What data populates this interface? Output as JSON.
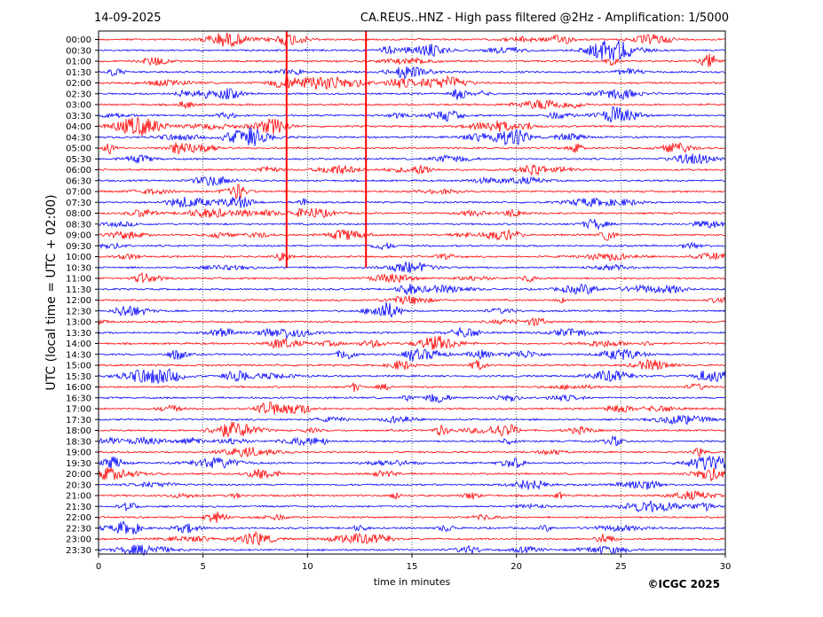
{
  "chart_data": {
    "type": "line",
    "date": "14-09-2025",
    "title": "CA.REUS..HNZ - High pass filtered @2Hz - Amplification: 1/5000",
    "xlabel": "time in minutes",
    "ylabel": "UTC (local time = UTC + 02:00)",
    "copyright": "©ICGC 2025",
    "xlim": [
      0,
      30
    ],
    "x_ticks": [
      0,
      5,
      10,
      15,
      20,
      25,
      30
    ],
    "x_tick_labels": [
      "0",
      "5",
      "10",
      "15",
      "20",
      "25",
      "30"
    ],
    "grid": "vertical dotted lines every 5 minutes",
    "trace_colors": [
      "#ff0000",
      "#0000ff"
    ],
    "rows": [
      "00:00",
      "00:30",
      "01:00",
      "01:30",
      "02:00",
      "02:30",
      "03:00",
      "03:30",
      "04:00",
      "04:30",
      "05:00",
      "05:30",
      "06:00",
      "06:30",
      "07:00",
      "07:30",
      "08:00",
      "08:30",
      "09:00",
      "09:30",
      "10:00",
      "10:30",
      "11:00",
      "11:30",
      "12:00",
      "12:30",
      "13:00",
      "13:30",
      "14:00",
      "14:30",
      "15:00",
      "15:30",
      "16:00",
      "16:30",
      "17:00",
      "17:30",
      "18:00",
      "18:30",
      "19:00",
      "19:30",
      "20:00",
      "20:30",
      "21:00",
      "21:30",
      "22:00",
      "22:30",
      "23:00",
      "23:30"
    ],
    "vertical_markers_min": [
      9.0,
      12.8
    ]
  }
}
